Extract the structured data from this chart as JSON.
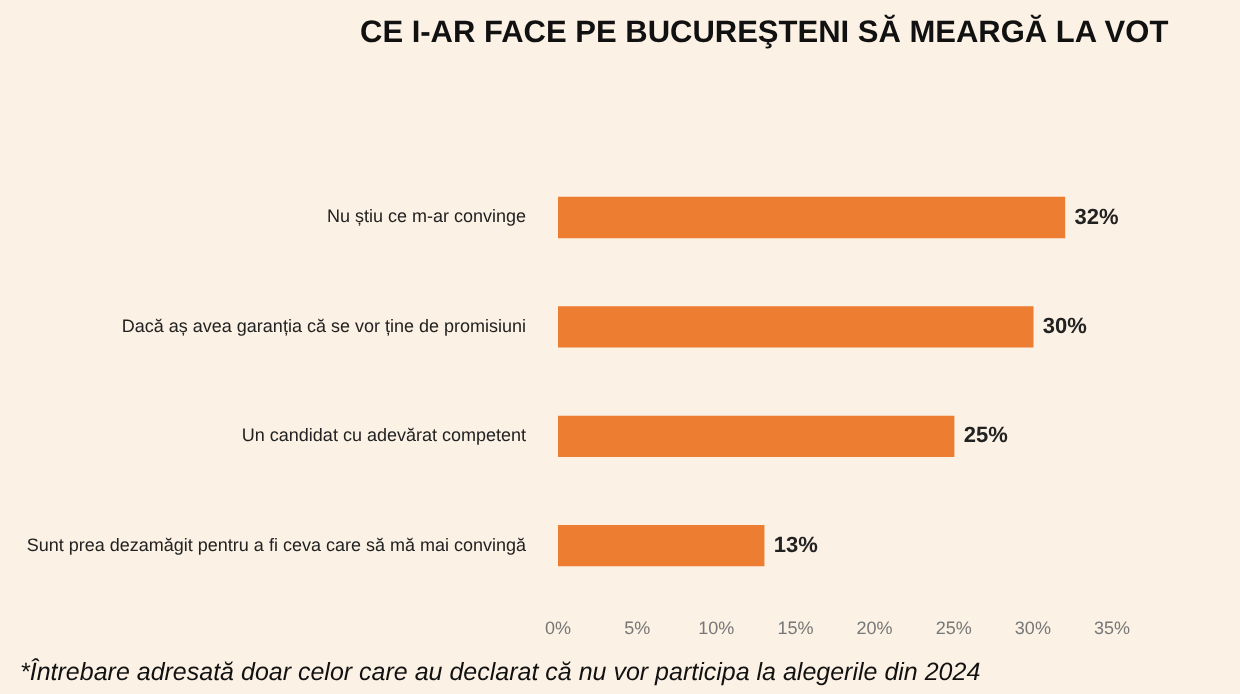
{
  "chart_data": {
    "type": "bar",
    "orientation": "horizontal",
    "title": "CE I-AR FACE PE BUCUREŞTENI SĂ MEARGĂ LA VOT",
    "categories": [
      "Nu știu ce m-ar convinge",
      "Dacă aș avea garanția că se vor ține de promisiuni",
      "Un candidat cu adevărat competent",
      "Sunt prea dezamăgit pentru a fi ceva care să mă mai convingă"
    ],
    "values": [
      32,
      30,
      25,
      13
    ],
    "color": "#ed7d31",
    "value_labels": [
      "32%",
      "30%",
      "25%",
      "13%"
    ],
    "xlim": [
      0,
      35
    ],
    "xticks": [
      {
        "value": 0,
        "label": "0%"
      },
      {
        "value": 5,
        "label": "5%"
      },
      {
        "value": 10,
        "label": "10%"
      },
      {
        "value": 15,
        "label": "15%"
      },
      {
        "value": 20,
        "label": "20%"
      },
      {
        "value": 25,
        "label": "25%"
      },
      {
        "value": 30,
        "label": "30%"
      },
      {
        "value": 35,
        "label": "35%"
      }
    ],
    "grid": false,
    "legend": false,
    "annotations": [
      "*Întrebare adresată doar celor care au declarat că nu vor participa la alegerile din 2024"
    ]
  }
}
